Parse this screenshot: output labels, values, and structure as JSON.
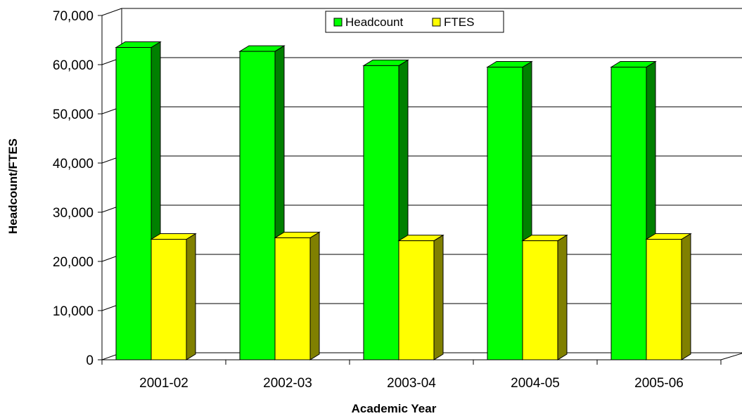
{
  "chart_data": {
    "type": "bar",
    "style": "3d-clustered-column",
    "title": "",
    "xlabel": "Academic Year",
    "ylabel": "Headcount/FTES",
    "categories": [
      "2001-02",
      "2002-03",
      "2003-04",
      "2004-05",
      "2005-06"
    ],
    "series": [
      {
        "name": "Headcount",
        "values": [
          63500,
          62700,
          59800,
          59500,
          59500
        ],
        "color": "#00ff00",
        "side_color": "#008000"
      },
      {
        "name": "FTES",
        "values": [
          24500,
          24800,
          24200,
          24200,
          24500
        ],
        "color": "#ffff00",
        "side_color": "#808000"
      }
    ],
    "ylim": [
      0,
      70000
    ],
    "yticks": [
      0,
      10000,
      20000,
      30000,
      40000,
      50000,
      60000,
      70000
    ],
    "ytick_labels": [
      "0",
      "10,000",
      "20,000",
      "30,000",
      "40,000",
      "50,000",
      "60,000",
      "70,000"
    ],
    "grid": true,
    "legend_position": "top"
  }
}
